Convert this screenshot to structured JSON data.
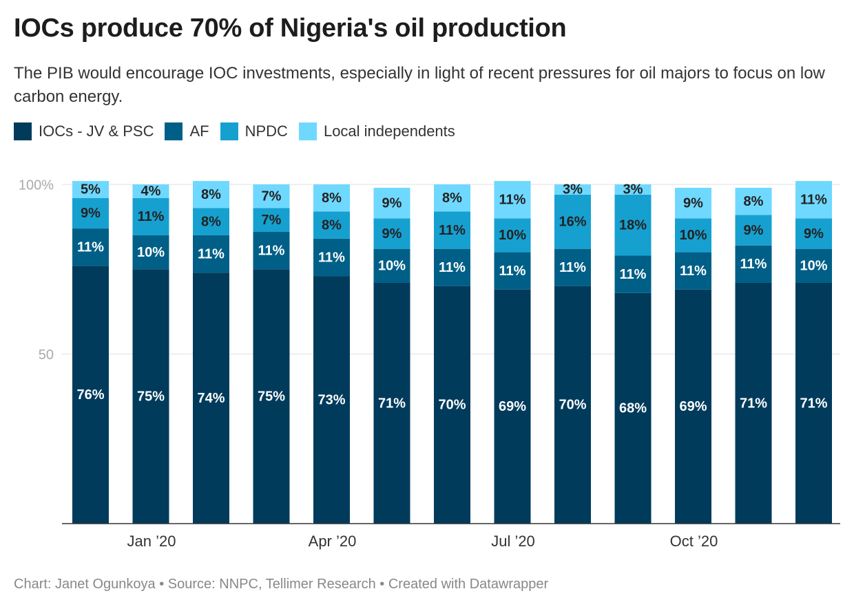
{
  "title": "IOCs produce 70% of Nigeria's oil production",
  "subtitle": "The PIB would encourage IOC investments, especially in light of recent pressures for oil majors to focus on low carbon energy.",
  "footer": "Chart: Janet Ogunkoya • Source: NNPC, Tellimer Research • Created with Datawrapper",
  "chart_data": {
    "type": "bar",
    "stacked": true,
    "x_ticks": [
      {
        "index": 1,
        "label": "Jan ’20"
      },
      {
        "index": 4,
        "label": "Apr ’20"
      },
      {
        "index": 7,
        "label": "Jul ’20"
      },
      {
        "index": 10,
        "label": "Oct ’20"
      }
    ],
    "series": [
      {
        "name": "IOCs - JV & PSC",
        "color": "#003b5c",
        "values": [
          76,
          75,
          74,
          75,
          73,
          71,
          70,
          69,
          70,
          68,
          69,
          71,
          71
        ]
      },
      {
        "name": "AF",
        "color": "#005f87",
        "values": [
          11,
          10,
          11,
          11,
          11,
          10,
          11,
          11,
          11,
          11,
          11,
          11,
          10
        ]
      },
      {
        "name": "NPDC",
        "color": "#16a0d0",
        "values": [
          9,
          11,
          8,
          7,
          8,
          9,
          11,
          10,
          16,
          18,
          10,
          9,
          9
        ]
      },
      {
        "name": "Local independents",
        "color": "#6fd8ff",
        "values": [
          5,
          4,
          8,
          7,
          8,
          9,
          8,
          11,
          3,
          3,
          9,
          8,
          11
        ]
      }
    ],
    "y_ticks": [
      {
        "value": 50,
        "label": "50"
      },
      {
        "value": 100,
        "label": "100%"
      }
    ],
    "ylim": [
      0,
      100
    ],
    "grid": true,
    "legend_position": "top-left"
  }
}
